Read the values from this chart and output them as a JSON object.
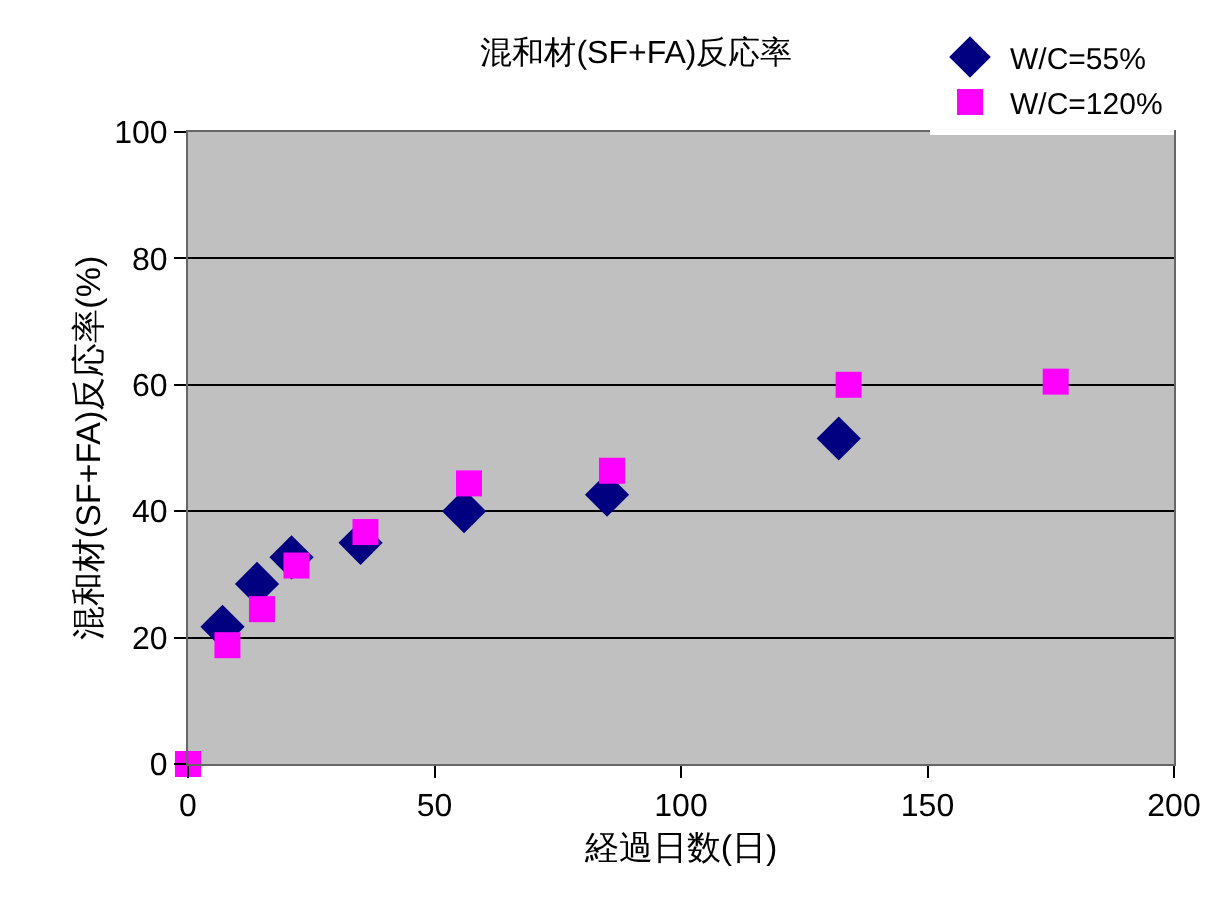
{
  "chart_data": {
    "type": "scatter",
    "title": "混和材(SF+FA)反応率",
    "xlabel": "経過日数(日)",
    "ylabel": "混和材(SF+FA)反応率(%)",
    "series": [
      {
        "name": "W/C=55%",
        "color": "#000080",
        "marker": "diamond",
        "x": [
          7,
          14,
          21,
          35,
          56,
          85,
          132
        ],
        "values": [
          21.7,
          28.5,
          32.7,
          35,
          40,
          42.6,
          51.5
        ]
      },
      {
        "name": "W/C=120%",
        "color": "#ff00ff",
        "marker": "square",
        "x": [
          0,
          8,
          15,
          22,
          36,
          57,
          86,
          134,
          176
        ],
        "values": [
          0,
          18.8,
          24.5,
          31.4,
          36.7,
          44.4,
          46.4,
          60,
          60.5
        ]
      }
    ],
    "xlim": [
      0,
      200
    ],
    "xticks": [
      0,
      50,
      100,
      150,
      200
    ],
    "ylim": [
      0,
      100
    ],
    "yticks": [
      0,
      20,
      40,
      60,
      80,
      100
    ],
    "grid": "y",
    "legend": "top right"
  }
}
